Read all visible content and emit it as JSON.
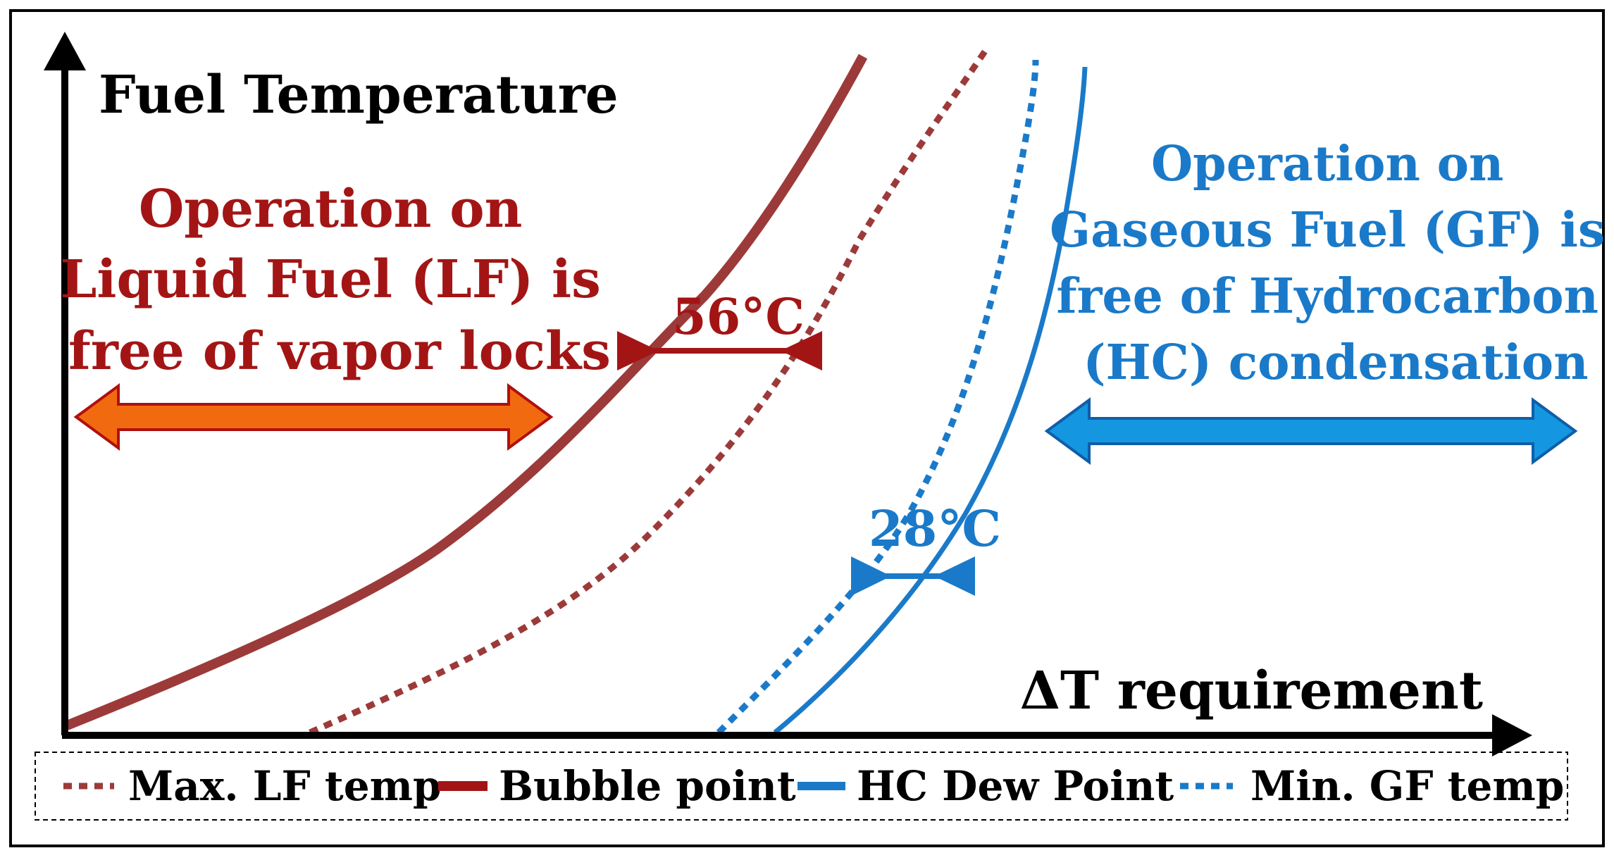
{
  "axes": {
    "y_label": "Fuel Temperature",
    "x_label": "ΔT requirement"
  },
  "regions": {
    "liquid": {
      "lines": [
        "Operation on",
        "Liquid Fuel (LF) is",
        "free of vapor locks"
      ]
    },
    "gaseous": {
      "lines": [
        "Operation on",
        "Gaseous Fuel (GF) is",
        "free of Hydrocarbon",
        "(HC) condensation"
      ]
    }
  },
  "gaps": {
    "lf": "56°C",
    "gf": "28°C"
  },
  "legend": {
    "max_lf": "Max. LF temp",
    "bubble": "Bubble point",
    "dew": "HC Dew Point",
    "min_gf": "Min. GF temp"
  },
  "colors": {
    "dark_red": "#a31515",
    "curve_red": "#9c3a3a",
    "blue": "#1a7ac9",
    "orange": "#f26a10",
    "light_blue": "#1496e0",
    "black": "#000000"
  }
}
